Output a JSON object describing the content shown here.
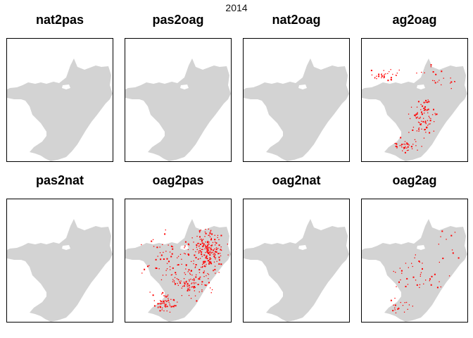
{
  "title": "2014",
  "colors": {
    "region_fill": "#d3d3d3",
    "highlight": "#ff0000",
    "frame": "#000000"
  },
  "panels": [
    {
      "name": "nat2pas",
      "density": "none"
    },
    {
      "name": "pas2oag",
      "density": "none"
    },
    {
      "name": "nat2oag",
      "density": "none"
    },
    {
      "name": "ag2oag",
      "density": "moderate"
    },
    {
      "name": "pas2nat",
      "density": "none"
    },
    {
      "name": "oag2pas",
      "density": "high"
    },
    {
      "name": "oag2nat",
      "density": "none"
    },
    {
      "name": "oag2ag",
      "density": "low"
    }
  ]
}
